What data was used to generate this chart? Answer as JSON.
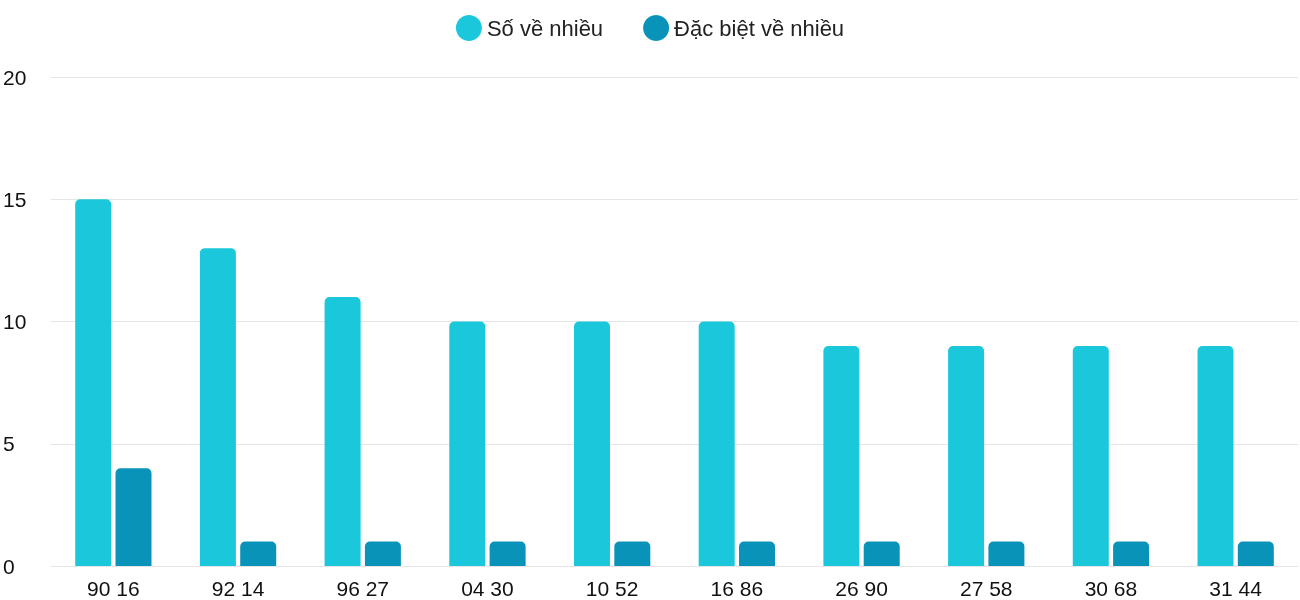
{
  "chart_data": {
    "type": "bar",
    "categories": [
      "90 16",
      "92 14",
      "96 27",
      "04 30",
      "10 52",
      "16 86",
      "26 90",
      "27 58",
      "30 68",
      "31 44"
    ],
    "series": [
      {
        "name": "Số về nhiều",
        "color": "#1bc8db",
        "values": [
          15,
          13,
          11,
          10,
          10,
          10,
          9,
          9,
          9,
          9
        ]
      },
      {
        "name": "Đặc biệt về nhiều",
        "color": "#0a93b9",
        "values": [
          4,
          1,
          1,
          1,
          1,
          1,
          1,
          1,
          1,
          1
        ]
      }
    ],
    "ylim": [
      0,
      20
    ],
    "yticks": [
      0,
      5,
      10,
      15,
      20
    ],
    "grid": "y",
    "legend": "top"
  }
}
